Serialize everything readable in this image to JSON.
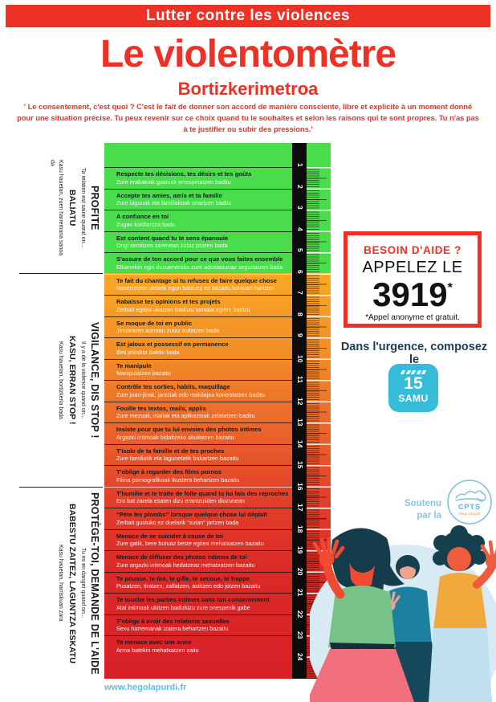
{
  "banner": {
    "text": "Lutter contre les violences"
  },
  "title": "Le violentomètre",
  "subtitle": "Bortizkerimetroa",
  "intro": "' Le consentement, c'est quoi ? C'est le fait de donner son accord de manière consciente, libre et explicite à un moment donné pour une situation précise. Tu peux revenir sur ce choix quand tu le souhaites et selon les raisons qui te sont propres. Tu n'as pas à te justifier ou subir des pressions.'",
  "zones": [
    {
      "fr_title": "PROFITE",
      "fr_sub": "Ta relation est saine quand on...",
      "eu_title": "BALIATU",
      "eu_sub": "Kasu hauetan, zuen harremana sanoa da"
    },
    {
      "fr_title": "VIGILANCE, DIS STOP !",
      "fr_sub": "Il y a de la violence quand on...",
      "eu_title": "KASU, ERRAN STOP !",
      "eu_sub": "Kasu hauetan, bortizkeria bada"
    },
    {
      "fr_title": "PROTÈGE-TOI, DEMANDE DE L'AIDE",
      "fr_sub": "Tu es en danger quand on...",
      "eu_title": "BABESTU ZAITEZ, LAGUNTZA ESKATU",
      "eu_sub": "Kasu hauetan, harriskuan zara"
    }
  ],
  "items": [
    {
      "zone": 1,
      "fr": "Respecte tes décisions, tes désirs et tes goûts",
      "eu": "Zure erabakiak gustuak errespetatzen baditu"
    },
    {
      "zone": 1,
      "fr": "Accepte tes amies, amis et ta famille",
      "eu": "Zure lagunak eta familiakoak onartzen baditu"
    },
    {
      "zone": 1,
      "fr": "A confiance en toi",
      "eu": "Zugan konfiantza badu"
    },
    {
      "zone": 1,
      "fr": "Est content quand tu te sens épanouie",
      "eu": "Ongi sentitzen zarenean zutaz pozten bada"
    },
    {
      "zone": 1,
      "fr": "S'assure de ton accord pour ce que vous faites ensemble",
      "eu": "Elkarrekin egin duzuenerako zure adostasunaz segurtatzen bada"
    },
    {
      "zone": 2,
      "fr": "Te fait du chantage si tu refuses de faire quelque chose",
      "eu": "Haserretzen delarik egun batzuez ez bazaitu kontuan hartzen"
    },
    {
      "zone": 2,
      "fr": "Rabaisse tes opinions et tes projets",
      "eu": "Zerbait egitea ukatzen baduzu xantaia egiten badizu"
    },
    {
      "zone": 2,
      "fr": "Se moque de toi en public",
      "eu": "Jendearen aurrean zutaz trufatzen bada"
    },
    {
      "zone": 2,
      "fr": "Est jaloux et possessif en permanence",
      "eu": "Beti jeloskor baldin bada"
    },
    {
      "zone": 2,
      "fr": "Te manipule",
      "eu": "Manipulatzen bazaitu"
    },
    {
      "zone": 2,
      "fr": "Contrôle tes sorties, habits, maquillage",
      "eu": "Zure joan-jinak, jantziak edo makilajea kontrolatzen baditu"
    },
    {
      "zone": 2,
      "fr": "Fouille tes textos, mails, applis",
      "eu": "Zure mezuak, mailak eta aplikazioak zelatatzen baditu"
    },
    {
      "zone": 2,
      "fr": "Insiste pour que tu lui envoies des photos intimes",
      "eu": "Argazki intimoak bidaltzeko akuilatzen bazaitu"
    },
    {
      "zone": 2,
      "fr": "T'isole de ta famille et de tes proches",
      "eu": "Zure familiatik eta lagunetatik bakartzen bazaitu"
    },
    {
      "zone": 2,
      "fr": "T'oblige à regarder des films pornos",
      "eu": "Filma pornografikoak ikustera behartzen bazaitu"
    },
    {
      "zone": 3,
      "fr": "T'humilie et te traite de folle quand tu lui fais des reproches",
      "eu": "Ero bat zarela esaten dizu erantzukiten diozunean"
    },
    {
      "zone": 3,
      "fr": "“Pète les plombs” lorsque quelque chose lui déplaît",
      "eu": "Zerbait gustuko ez duelarik “sutan” jartzen bada"
    },
    {
      "zone": 3,
      "fr": "Menace de se suicider à cause de toi",
      "eu": "Zure gatik, bere buruaz beste egitea mehatxatzen bazaitu"
    },
    {
      "zone": 3,
      "fr": "Menace de diffuser des photos intimes de toi",
      "eu": "Zure argazki intimoak hedatzeaz mehatxatzen bazaitu"
    },
    {
      "zone": 3,
      "fr": "Te pousse, te tire, te gifle, te secoue, te frappe",
      "eu": "Pusatzen, tiratzen, zaflatzen, astitzen edo jotzen bazaitu"
    },
    {
      "zone": 3,
      "fr": "Te touche les parties intimes sans ton consentement",
      "eu": "Atal intimoak ukitzen badizkizu zure onespenik gabe"
    },
    {
      "zone": 3,
      "fr": "T'oblige à avoir des relations sexuelles",
      "eu": "Sexu harremanak izatera behartzen bazaitu"
    },
    {
      "zone": 3,
      "fr": "Te menace avec une arme",
      "eu": "Arma batekin mehatxatzen zaitu"
    }
  ],
  "ruler": {
    "numbers": [
      1,
      2,
      3,
      4,
      5,
      6,
      7,
      8,
      9,
      10,
      11,
      12,
      13,
      14,
      15,
      16,
      17,
      18,
      19,
      20,
      21,
      22,
      23,
      24
    ]
  },
  "help_box": {
    "title": "BESOIN D'AIDE ?",
    "call_line": "APPELEZ LE",
    "number": "3919",
    "asterisk": "*",
    "note": "*Appel anonyme et gratuit."
  },
  "emergency": {
    "text": "Dans l'urgence, composez le",
    "badge_number": "15",
    "badge_label": "SAMU"
  },
  "support": {
    "text": "Soutenu par la",
    "logo_title": "CPTS",
    "logo_sub": "Hego Lapurdi"
  },
  "footer": {
    "url": "www.hegolapurdi.fr"
  },
  "colors": {
    "accent_red": "#EE3124",
    "green": "#49DD4C",
    "orange": "#F9A826",
    "deep_red": "#D82027",
    "cyan": "#35BCD9",
    "light_blue": "#8CC6DC",
    "navy": "#1D3A52"
  }
}
